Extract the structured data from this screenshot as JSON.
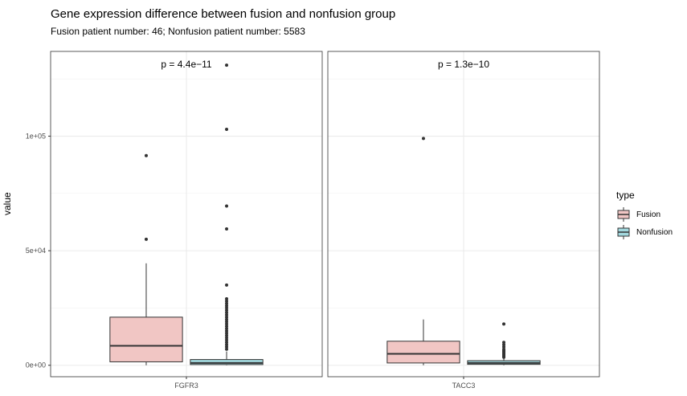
{
  "chart_data": {
    "type": "boxplot",
    "title": "Gene expression difference between fusion and nonfusion group",
    "subtitle": "Fusion patient number: 46; Nonfusion patient number: 5583",
    "ylabel": "value",
    "xlabel": "",
    "ylim": [
      -5000,
      137000
    ],
    "y_ticks": [
      0,
      50000,
      100000
    ],
    "y_tick_labels": [
      "0e+00",
      "5e+04",
      "1e+05"
    ],
    "grid": true,
    "legend_position": "right",
    "legend_title": "type",
    "series": [
      {
        "name": "Fusion",
        "color": "#f1c6c4"
      },
      {
        "name": "Nonfusion",
        "color": "#a3d9df"
      }
    ],
    "panels": [
      {
        "gene": "FGFR3",
        "pvalue": "p = 4.4e−11",
        "boxes": [
          {
            "type": "Fusion",
            "q1": 1500,
            "median": 8500,
            "q3": 21000,
            "whisker_low": 0,
            "whisker_high": 44500,
            "outliers": [
              55000,
              91500
            ]
          },
          {
            "type": "Nonfusion",
            "q1": 300,
            "median": 1000,
            "q3": 2500,
            "whisker_low": 0,
            "whisker_high": 6000,
            "outliers": [
              7000,
              8000,
              9000,
              10000,
              11000,
              12000,
              13000,
              14000,
              15000,
              16000,
              17000,
              18000,
              19000,
              20000,
              21000,
              22000,
              23000,
              24000,
              25000,
              26000,
              27000,
              28000,
              29000,
              35000,
              59500,
              69500,
              103000,
              131000
            ]
          }
        ]
      },
      {
        "gene": "TACC3",
        "pvalue": "p = 1.3e−10",
        "boxes": [
          {
            "type": "Fusion",
            "q1": 1000,
            "median": 5000,
            "q3": 10500,
            "whisker_low": 0,
            "whisker_high": 20000,
            "outliers": [
              99000
            ]
          },
          {
            "type": "Nonfusion",
            "q1": 400,
            "median": 1000,
            "q3": 2000,
            "whisker_low": 0,
            "whisker_high": 3000,
            "outliers": [
              3500,
              4000,
              4500,
              5000,
              5500,
              6000,
              6500,
              7000,
              8000,
              9000,
              10000,
              18000
            ]
          }
        ]
      }
    ]
  }
}
